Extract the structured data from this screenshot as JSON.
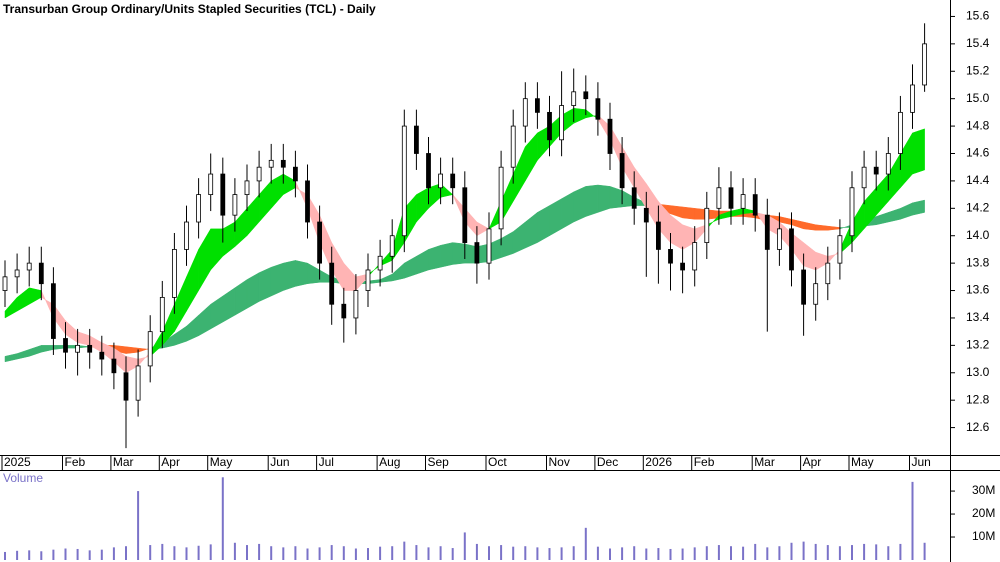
{
  "chart_data": [
    {
      "type": "candlestick",
      "title": "Transurban Group Ordinary/Units Stapled Securities (TCL) - Daily",
      "categories": [
        "2025",
        null,
        null,
        null,
        null,
        "Feb",
        null,
        null,
        null,
        "Mar",
        null,
        null,
        null,
        "Apr",
        null,
        null,
        null,
        "May",
        null,
        null,
        null,
        null,
        "Jun",
        null,
        null,
        null,
        "Jul",
        null,
        null,
        null,
        null,
        "Aug",
        null,
        null,
        null,
        "Sep",
        null,
        null,
        null,
        null,
        "Oct",
        null,
        null,
        null,
        null,
        "Nov",
        null,
        null,
        null,
        "Dec",
        null,
        null,
        null,
        "2026",
        null,
        null,
        null,
        "Feb",
        null,
        null,
        null,
        null,
        "Mar",
        null,
        null,
        null,
        "Apr",
        null,
        null,
        null,
        "May",
        null,
        null,
        null,
        null,
        "Jun",
        null
      ],
      "open": [
        13.6,
        13.7,
        13.75,
        13.8,
        13.65,
        13.25,
        13.15,
        13.2,
        13.15,
        13.1,
        13.0,
        12.8,
        13.05,
        13.3,
        13.55,
        13.9,
        14.1,
        14.3,
        14.45,
        14.15,
        14.3,
        14.4,
        14.5,
        14.55,
        14.5,
        14.4,
        14.1,
        13.8,
        13.5,
        13.4,
        13.6,
        13.75,
        13.85,
        14.0,
        14.8,
        14.6,
        14.35,
        14.45,
        14.35,
        13.95,
        13.8,
        14.05,
        14.5,
        14.8,
        15.0,
        14.9,
        14.7,
        14.95,
        15.05,
        15.0,
        14.85,
        14.6,
        14.35,
        14.2,
        14.1,
        13.9,
        13.8,
        13.75,
        13.95,
        14.2,
        14.35,
        14.2,
        14.3,
        14.15,
        13.9,
        14.05,
        13.75,
        13.5,
        13.65,
        13.8,
        14.0,
        14.35,
        14.5,
        14.45,
        14.6,
        14.9,
        15.1
      ],
      "high": [
        13.82,
        13.87,
        13.92,
        13.92,
        13.77,
        13.37,
        13.32,
        13.32,
        13.27,
        13.22,
        13.12,
        13.17,
        13.42,
        13.67,
        14.02,
        14.22,
        14.42,
        14.6,
        14.57,
        14.42,
        14.52,
        14.62,
        14.67,
        14.67,
        14.62,
        14.52,
        14.22,
        13.92,
        13.62,
        13.72,
        13.87,
        13.97,
        14.12,
        14.92,
        14.92,
        14.72,
        14.57,
        14.57,
        14.47,
        14.07,
        14.17,
        14.62,
        14.92,
        15.12,
        15.12,
        15.02,
        15.2,
        15.22,
        15.17,
        15.12,
        14.97,
        14.72,
        14.47,
        14.32,
        14.22,
        14.02,
        13.92,
        14.07,
        14.32,
        14.5,
        14.47,
        14.42,
        14.42,
        14.27,
        14.17,
        14.17,
        13.87,
        13.77,
        13.92,
        14.12,
        14.47,
        14.62,
        14.62,
        14.72,
        15.02,
        15.25,
        15.55
      ],
      "low": [
        13.48,
        13.58,
        13.63,
        13.53,
        13.13,
        13.03,
        12.98,
        13.03,
        12.98,
        12.88,
        12.45,
        12.68,
        12.93,
        13.18,
        13.43,
        13.78,
        13.98,
        14.18,
        13.95,
        14.03,
        14.18,
        14.28,
        14.38,
        14.38,
        14.28,
        13.98,
        13.68,
        13.35,
        13.22,
        13.28,
        13.48,
        13.63,
        13.73,
        13.88,
        14.48,
        14.23,
        14.23,
        14.23,
        13.83,
        13.65,
        13.68,
        13.93,
        14.38,
        14.68,
        14.78,
        14.58,
        14.58,
        14.83,
        14.88,
        14.73,
        14.48,
        14.23,
        14.08,
        13.7,
        13.65,
        13.6,
        13.58,
        13.63,
        13.83,
        14.08,
        14.08,
        14.08,
        14.03,
        13.3,
        13.78,
        13.63,
        13.27,
        13.38,
        13.53,
        13.68,
        13.88,
        14.23,
        14.33,
        14.33,
        14.48,
        14.78,
        15.05
      ],
      "close": [
        13.7,
        13.75,
        13.8,
        13.65,
        13.25,
        13.15,
        13.2,
        13.15,
        13.1,
        13.0,
        12.8,
        13.05,
        13.3,
        13.55,
        13.9,
        14.1,
        14.3,
        14.45,
        14.15,
        14.3,
        14.4,
        14.5,
        14.55,
        14.5,
        14.4,
        14.1,
        13.8,
        13.5,
        13.4,
        13.6,
        13.75,
        13.85,
        14.0,
        14.8,
        14.6,
        14.35,
        14.45,
        14.35,
        13.95,
        13.8,
        14.05,
        14.5,
        14.8,
        15.0,
        14.9,
        14.7,
        14.95,
        15.05,
        15.0,
        14.85,
        14.6,
        14.35,
        14.2,
        14.1,
        13.9,
        13.8,
        13.75,
        13.95,
        14.2,
        14.35,
        14.2,
        14.3,
        14.15,
        13.9,
        14.05,
        13.75,
        13.5,
        13.65,
        13.8,
        14.0,
        14.35,
        14.5,
        14.45,
        14.6,
        14.9,
        15.1,
        15.4
      ],
      "ribbons": [
        {
          "up_color": "#3cb371",
          "down_color": "#ff6a2a",
          "fast": [
            13.12,
            13.14,
            13.17,
            13.2,
            13.2,
            13.2,
            13.2,
            13.19,
            13.18,
            13.16,
            13.14,
            13.15,
            13.18,
            13.22,
            13.28,
            13.34,
            13.42,
            13.5,
            13.56,
            13.62,
            13.68,
            13.73,
            13.77,
            13.8,
            13.82,
            13.8,
            13.75,
            13.7,
            13.67,
            13.66,
            13.67,
            13.68,
            13.72,
            13.8,
            13.85,
            13.9,
            13.93,
            13.95,
            13.94,
            13.92,
            13.94,
            13.98,
            14.03,
            14.1,
            14.17,
            14.22,
            14.27,
            14.32,
            14.36,
            14.37,
            14.36,
            14.33,
            14.28,
            14.24,
            14.2,
            14.16,
            14.13,
            14.12,
            14.12,
            14.13,
            14.14,
            14.14,
            14.13,
            14.11,
            14.1,
            14.08,
            14.05,
            14.04,
            14.04,
            14.05,
            14.08,
            14.11,
            14.14,
            14.17,
            14.2,
            14.24,
            14.26
          ],
          "slow": [
            13.08,
            13.1,
            13.12,
            13.15,
            13.17,
            13.18,
            13.18,
            13.19,
            13.2,
            13.2,
            13.19,
            13.18,
            13.17,
            13.18,
            13.2,
            13.23,
            13.27,
            13.32,
            13.37,
            13.42,
            13.47,
            13.52,
            13.56,
            13.6,
            13.63,
            13.65,
            13.66,
            13.66,
            13.65,
            13.65,
            13.65,
            13.66,
            13.67,
            13.69,
            13.72,
            13.75,
            13.77,
            13.79,
            13.8,
            13.8,
            13.81,
            13.84,
            13.87,
            13.91,
            13.95,
            14.0,
            14.05,
            14.1,
            14.14,
            14.17,
            14.2,
            14.21,
            14.22,
            14.22,
            14.23,
            14.22,
            14.21,
            14.2,
            14.19,
            14.18,
            14.18,
            14.17,
            14.16,
            14.15,
            14.14,
            14.12,
            14.1,
            14.08,
            14.07,
            14.06,
            14.06,
            14.07,
            14.08,
            14.1,
            14.12,
            14.15,
            14.17
          ]
        },
        {
          "up_color": "#00e000",
          "down_color": "#ffb4b4",
          "fast": [
            13.45,
            13.55,
            13.62,
            13.6,
            13.4,
            13.28,
            13.22,
            13.2,
            13.15,
            13.08,
            13.0,
            13.05,
            13.15,
            13.3,
            13.5,
            13.7,
            13.9,
            14.05,
            14.05,
            14.1,
            14.2,
            14.3,
            14.4,
            14.45,
            14.4,
            14.2,
            13.95,
            13.75,
            13.6,
            13.6,
            13.7,
            13.8,
            13.9,
            14.2,
            14.3,
            14.35,
            14.38,
            14.3,
            14.1,
            14.0,
            14.05,
            14.25,
            14.45,
            14.65,
            14.75,
            14.8,
            14.88,
            14.93,
            14.92,
            14.85,
            14.7,
            14.5,
            14.35,
            14.2,
            14.05,
            13.95,
            13.9,
            13.95,
            14.05,
            14.15,
            14.18,
            14.2,
            14.18,
            14.05,
            14.0,
            13.9,
            13.78,
            13.75,
            13.8,
            13.9,
            14.1,
            14.25,
            14.35,
            14.45,
            14.6,
            14.75,
            14.78
          ],
          "slow": [
            13.4,
            13.45,
            13.5,
            13.55,
            13.5,
            13.38,
            13.3,
            13.27,
            13.22,
            13.18,
            13.12,
            13.1,
            13.12,
            13.2,
            13.3,
            13.45,
            13.6,
            13.75,
            13.85,
            13.92,
            14.0,
            14.1,
            14.2,
            14.3,
            14.35,
            14.3,
            14.15,
            13.95,
            13.8,
            13.7,
            13.72,
            13.78,
            13.82,
            13.95,
            14.1,
            14.2,
            14.28,
            14.3,
            14.2,
            14.1,
            14.05,
            14.1,
            14.25,
            14.4,
            14.55,
            14.65,
            14.75,
            14.82,
            14.86,
            14.88,
            14.8,
            14.65,
            14.5,
            14.38,
            14.25,
            14.15,
            14.08,
            14.05,
            14.08,
            14.12,
            14.14,
            14.16,
            14.17,
            14.15,
            14.1,
            14.02,
            13.95,
            13.88,
            13.85,
            13.87,
            13.95,
            14.05,
            14.15,
            14.25,
            14.35,
            14.45,
            14.48
          ]
        }
      ],
      "ylim": [
        12.4,
        15.72
      ],
      "yticks": [
        12.6,
        12.8,
        {
          "value": 13,
          "label": "13.0"
        },
        13.2,
        13.4,
        13.6,
        13.8,
        {
          "value": 14,
          "label": "14.0"
        },
        14.2,
        14.4,
        14.6,
        14.8,
        {
          "value": 15,
          "label": "15.0"
        },
        15.2,
        15.4,
        15.6
      ]
    },
    {
      "type": "bar",
      "title": "Volume",
      "color": "#7a72c8",
      "values": [
        3.5,
        4,
        4.2,
        3.8,
        4.5,
        5,
        4.8,
        4.2,
        4.5,
        5.5,
        6,
        30,
        6.5,
        7,
        6,
        5.5,
        6.2,
        6.8,
        36,
        7.5,
        6.5,
        7,
        6,
        5.5,
        6,
        5,
        5.5,
        6.5,
        6,
        5,
        5.2,
        5.8,
        6,
        8,
        6.5,
        5.5,
        6,
        5.2,
        12,
        7,
        6,
        6.5,
        5.8,
        6,
        5.5,
        5.2,
        5.5,
        6,
        14,
        5.8,
        5,
        5.5,
        6,
        5,
        5.2,
        4.8,
        5,
        5.5,
        6,
        6.5,
        6,
        5.8,
        7,
        5.5,
        6,
        7.5,
        8,
        7,
        6.5,
        6,
        6.5,
        7,
        6.8,
        6,
        7,
        34,
        7.5
      ],
      "ylim": [
        0,
        38.3
      ],
      "yticks": [
        {
          "value": 10,
          "label": "10M"
        },
        {
          "value": 20,
          "label": "20M"
        },
        {
          "value": 30,
          "label": "30M"
        }
      ]
    }
  ]
}
